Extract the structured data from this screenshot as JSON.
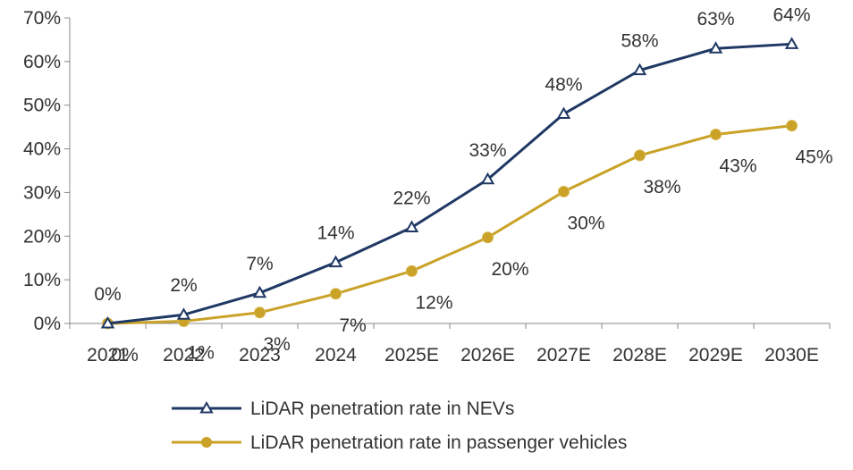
{
  "chart_data": {
    "type": "line",
    "categories": [
      "2021",
      "2022",
      "2023",
      "2024",
      "2025E",
      "2026E",
      "2027E",
      "2028E",
      "2029E",
      "2030E"
    ],
    "series": [
      {
        "name": "LiDAR penetration rate in NEVs",
        "values": [
          0,
          2,
          7,
          14,
          22,
          33,
          48,
          58,
          63,
          64
        ],
        "labels": [
          "0%",
          "2%",
          "7%",
          "14%",
          "22%",
          "33%",
          "48%",
          "58%",
          "63%",
          "64%"
        ],
        "color": "#1f3864",
        "marker": "triangle"
      },
      {
        "name": "LiDAR penetration rate in passenger vehicles",
        "values": [
          0,
          0.5,
          2.5,
          6.8,
          12,
          19.7,
          30.2,
          38.5,
          43.3,
          45.3
        ],
        "labels": [
          "0%",
          "1%",
          "3%",
          "7%",
          "12%",
          "20%",
          "30%",
          "38%",
          "43%",
          "45%"
        ],
        "color": "#c9a227",
        "marker": "circle"
      }
    ],
    "y_ticks": [
      "0%",
      "10%",
      "20%",
      "30%",
      "40%",
      "50%",
      "60%",
      "70%"
    ],
    "ylim": [
      0,
      70
    ],
    "grid": false,
    "legend_position": "bottom"
  }
}
